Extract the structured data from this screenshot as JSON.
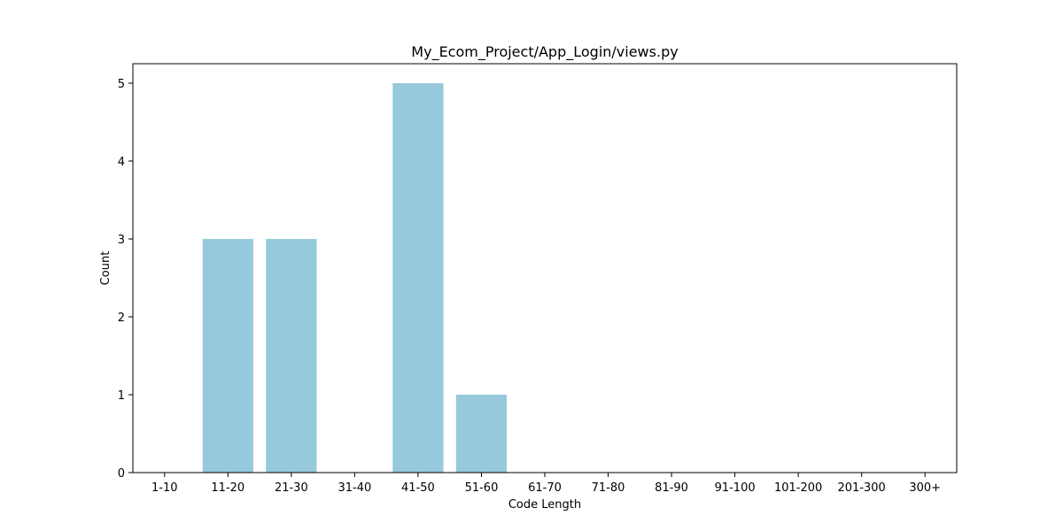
{
  "chart_data": {
    "type": "bar",
    "title": "My_Ecom_Project/App_Login/views.py",
    "xlabel": "Code Length",
    "ylabel": "Count",
    "categories": [
      "1-10",
      "11-20",
      "21-30",
      "31-40",
      "41-50",
      "51-60",
      "61-70",
      "71-80",
      "81-90",
      "91-100",
      "101-200",
      "201-300",
      "300+"
    ],
    "values": [
      0,
      3,
      3,
      0,
      5,
      1,
      0,
      0,
      0,
      0,
      0,
      0,
      0
    ],
    "ylim": [
      0,
      5.25
    ],
    "yticks": [
      "0",
      "1",
      "2",
      "3",
      "4",
      "5"
    ],
    "bar_color": "#96c9dc",
    "grid": false,
    "legend": "none"
  }
}
